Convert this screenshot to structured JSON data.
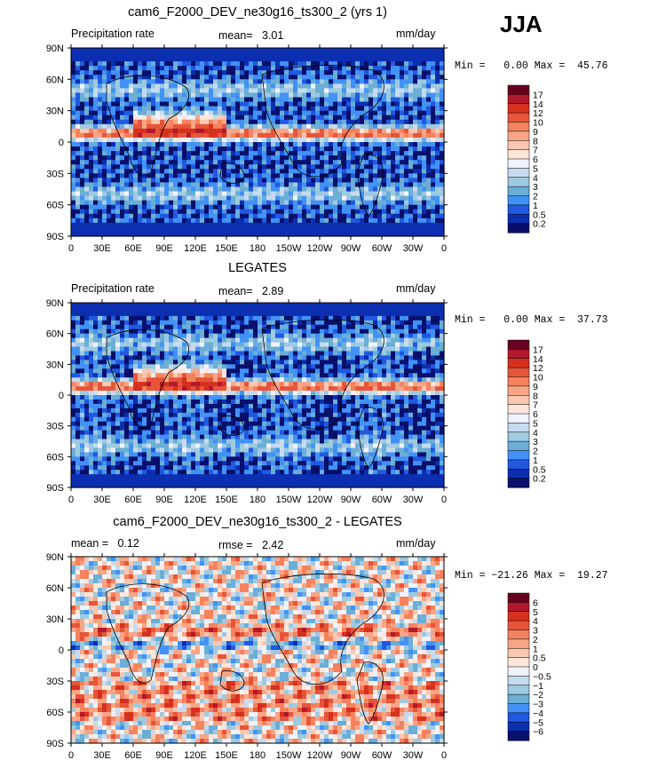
{
  "season": "JJA",
  "panels": [
    {
      "title": "cam6_F2000_DEV_ne30g16_ts300_2 (yrs 1)",
      "left_text": "Precipitation rate",
      "center_text": "mean=   3.01",
      "units": "mm/day",
      "minmax": "Min =   0.00 Max =  45.76",
      "colorbar": {
        "labels": [
          "17",
          "14",
          "12",
          "10",
          "9",
          "8",
          "7",
          "6",
          "5",
          "4",
          "3",
          "2",
          "1",
          "0.5",
          "0.2"
        ],
        "colors": [
          "#67001f",
          "#b2182b",
          "#d6301f",
          "#e6553a",
          "#f4825e",
          "#f7a585",
          "#fbc7b0",
          "#fde6d9",
          "#eff3ff",
          "#c6dbef",
          "#9ecae1",
          "#6baed6",
          "#4292f6",
          "#2158e0",
          "#0b2fb0",
          "#08106b"
        ]
      }
    },
    {
      "title": "LEGATES",
      "left_text": "Precipitation rate",
      "center_text": "mean=   2.89",
      "units": "mm/day",
      "minmax": "Min =   0.00 Max =  37.73",
      "colorbar": {
        "labels": [
          "17",
          "14",
          "12",
          "10",
          "9",
          "8",
          "7",
          "6",
          "5",
          "4",
          "3",
          "2",
          "1",
          "0.5",
          "0.2"
        ],
        "colors": [
          "#67001f",
          "#b2182b",
          "#d6301f",
          "#e6553a",
          "#f4825e",
          "#f7a585",
          "#fbc7b0",
          "#fde6d9",
          "#eff3ff",
          "#c6dbef",
          "#9ecae1",
          "#6baed6",
          "#4292f6",
          "#2158e0",
          "#0b2fb0",
          "#08106b"
        ]
      }
    },
    {
      "title": "cam6_F2000_DEV_ne30g16_ts300_2 - LEGATES",
      "left_text": "mean =   0.12",
      "center_text": "rmse =   2.42",
      "units": "mm/day",
      "minmax": "Min = −21.26 Max =  19.27",
      "colorbar": {
        "labels": [
          "6",
          "5",
          "4",
          "3",
          "2",
          "1",
          "0.5",
          "0",
          "−0.5",
          "−1",
          "−2",
          "−3",
          "−4",
          "−5",
          "−6"
        ],
        "colors": [
          "#67001f",
          "#b2182b",
          "#d6301f",
          "#e6553a",
          "#f4825e",
          "#f7a585",
          "#fbc7b0",
          "#fde6d9",
          "#eff3ff",
          "#c6dbef",
          "#9ecae1",
          "#6baed6",
          "#4292f6",
          "#2158e0",
          "#0b2fb0",
          "#08106b"
        ]
      }
    }
  ],
  "lat_labels": [
    "90N",
    "60N",
    "30N",
    "0",
    "30S",
    "60S",
    "90S"
  ],
  "lon_labels": [
    "0",
    "30E",
    "60E",
    "90E",
    "120E",
    "150E",
    "180",
    "150W",
    "120W",
    "90W",
    "60W",
    "30W",
    "0"
  ]
}
